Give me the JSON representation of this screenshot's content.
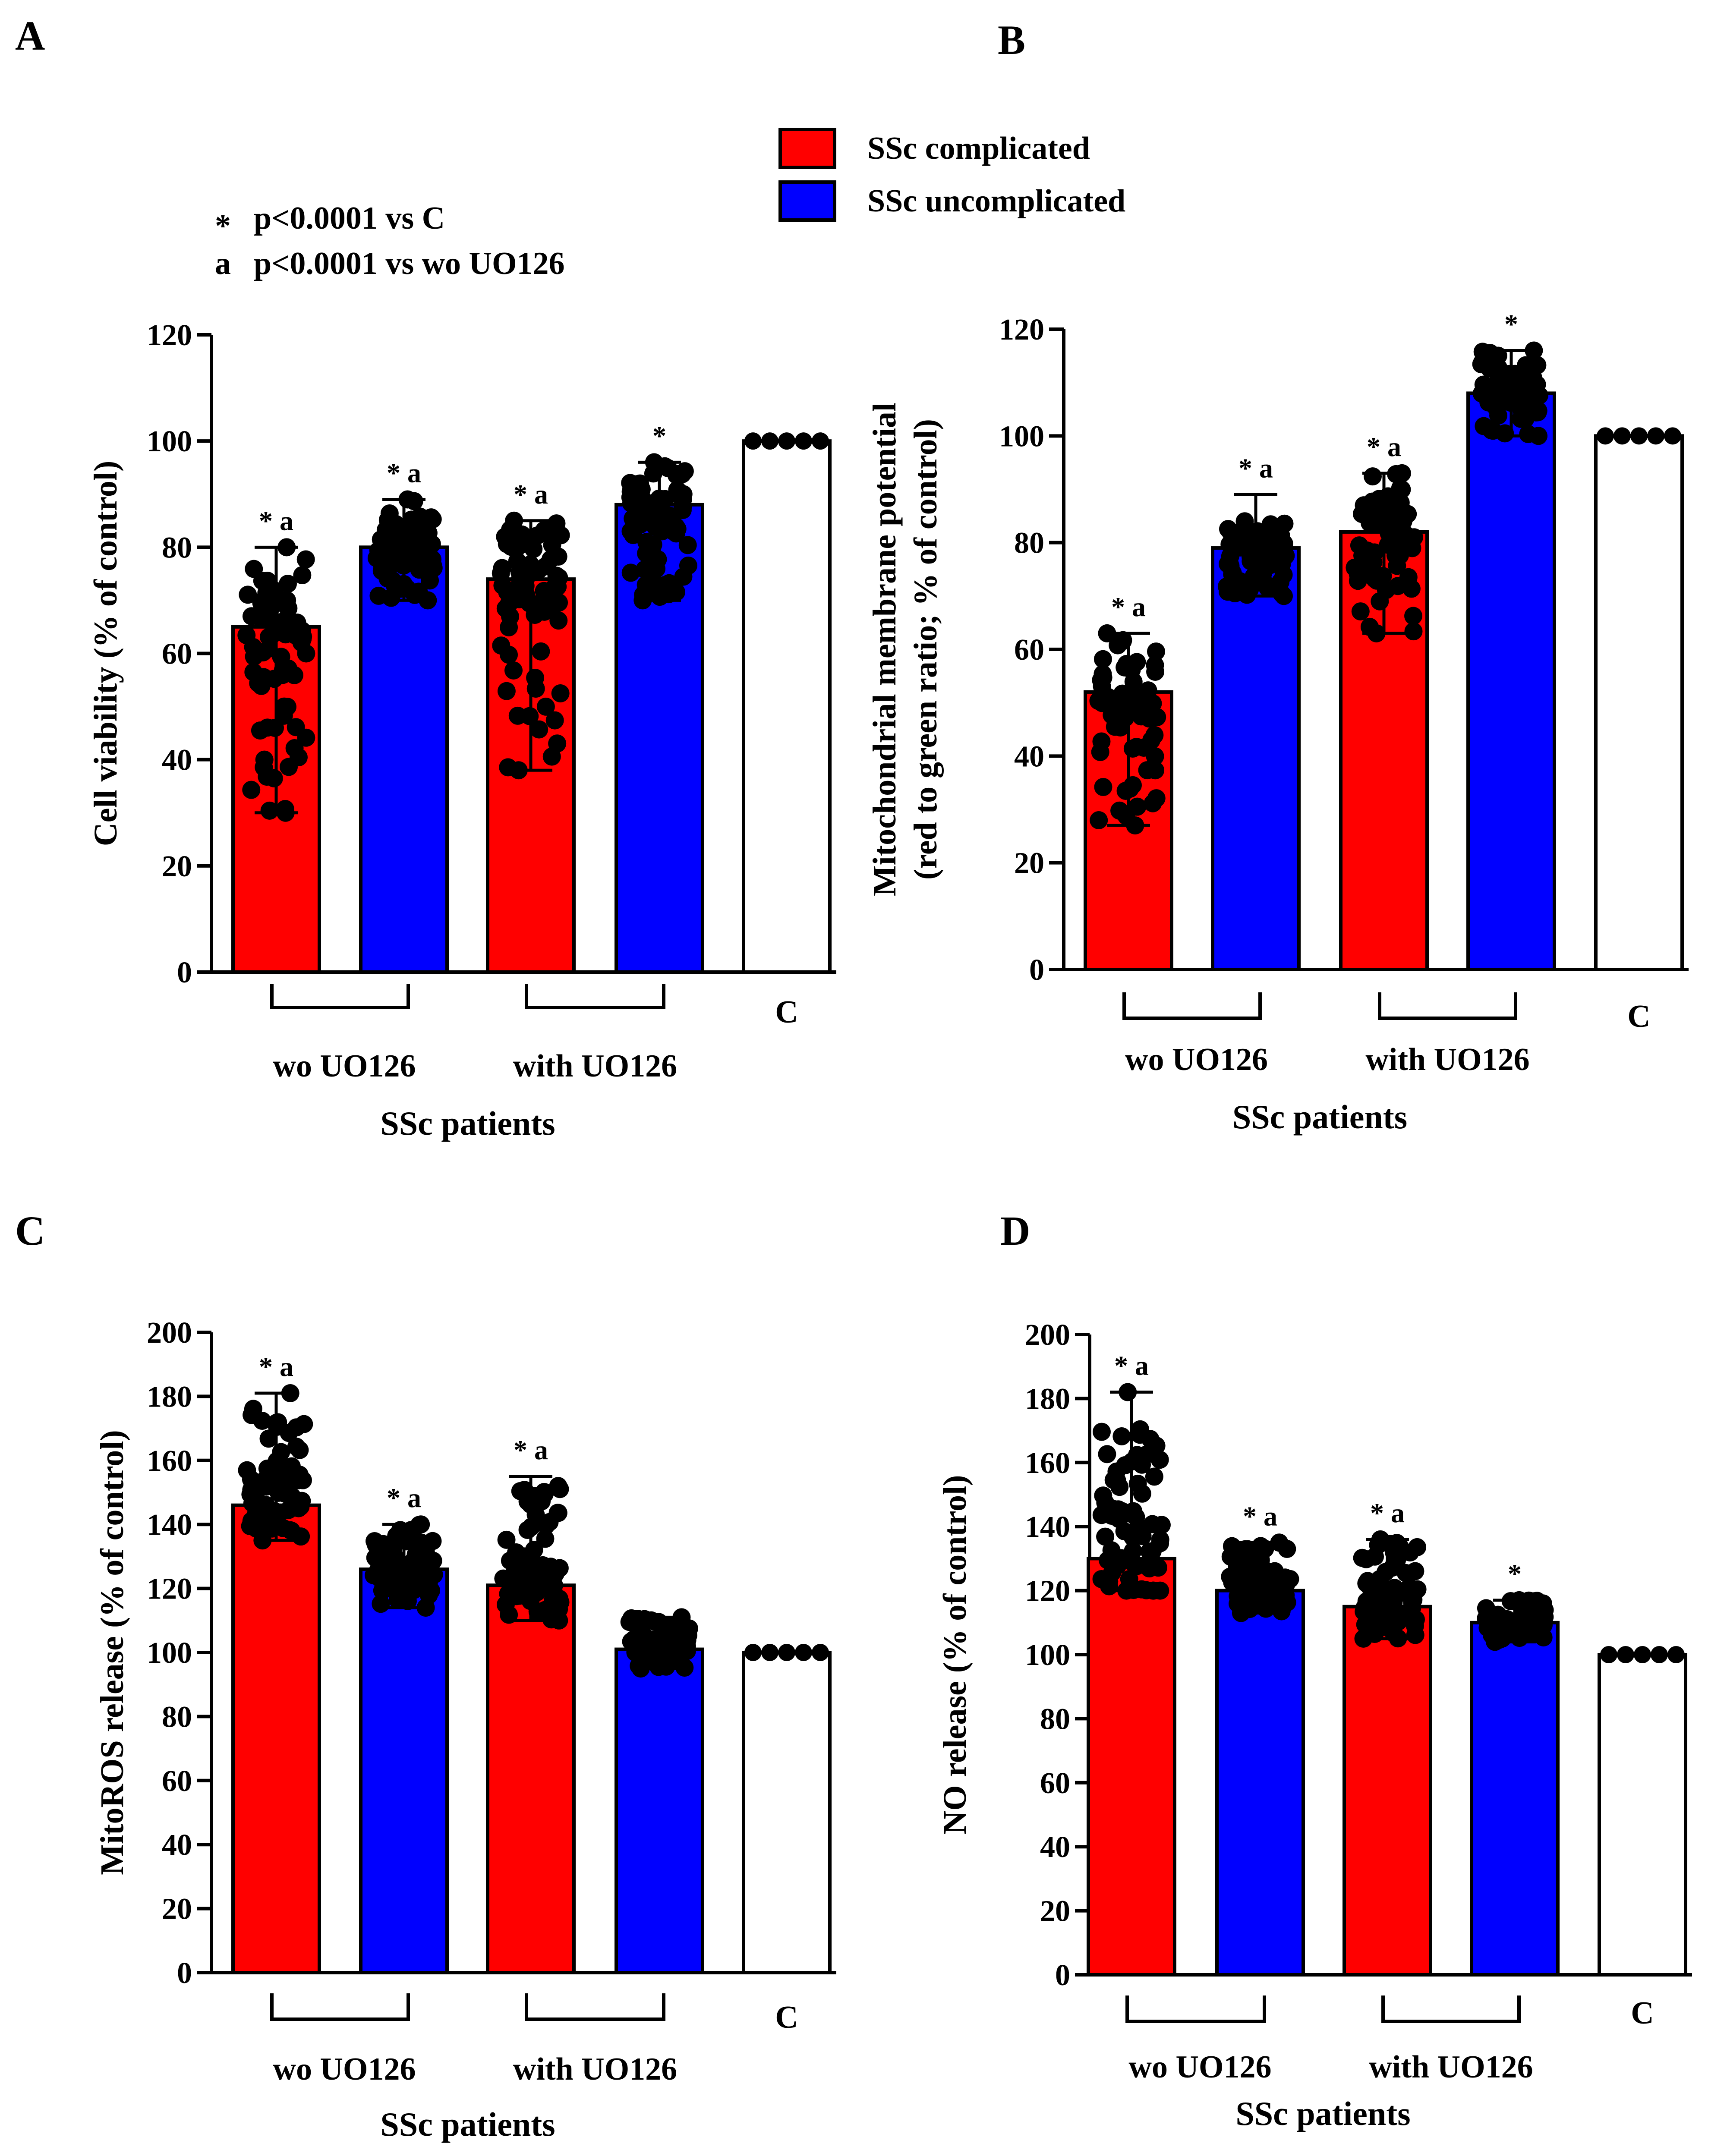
{
  "legend": {
    "items": [
      {
        "label": "SSc complicated",
        "color": "#ff0000"
      },
      {
        "label": "SSc uncomplicated",
        "color": "#0000ff"
      }
    ]
  },
  "notes": [
    {
      "symbol": "*",
      "text": "p<0.0001 vs C"
    },
    {
      "symbol": "a",
      "text": "p<0.0001 vs wo UO126"
    }
  ],
  "chart_data": [
    {
      "panel": "A",
      "type": "bar",
      "ylabel_lines": [
        "Cell viability (% of control)"
      ],
      "ylim": [
        0,
        120
      ],
      "yticks": [
        0,
        20,
        40,
        60,
        80,
        100,
        120
      ],
      "xlabel": "SSc patients",
      "groups": [
        "wo UO126",
        "with UO126"
      ],
      "control_label": "C",
      "bars": [
        {
          "series": "SSc complicated",
          "value": 65,
          "err_low": 30,
          "err_high": 80,
          "scatter": [
            30,
            80
          ],
          "sig": "* a"
        },
        {
          "series": "SSc uncomplicated",
          "value": 80,
          "err_low": 70,
          "err_high": 89,
          "scatter": [
            70,
            89
          ],
          "sig": "* a"
        },
        {
          "series": "SSc complicated",
          "value": 74,
          "err_low": 38,
          "err_high": 85,
          "scatter": [
            38,
            85
          ],
          "sig": "* a"
        },
        {
          "series": "SSc uncomplicated",
          "value": 88,
          "err_low": 70,
          "err_high": 96,
          "scatter": [
            70,
            96
          ],
          "sig": "*"
        },
        {
          "series": "C",
          "value": 100,
          "err_low": 100,
          "err_high": 100,
          "scatter": [],
          "sig": ""
        }
      ]
    },
    {
      "panel": "B",
      "type": "bar",
      "ylabel_lines": [
        "Mitochondrial membrane potential",
        "(red to green ratio; % of control)"
      ],
      "ylim": [
        0,
        120
      ],
      "yticks": [
        0,
        20,
        40,
        60,
        80,
        100,
        120
      ],
      "xlabel": "SSc patients",
      "groups": [
        "wo UO126",
        "with UO126"
      ],
      "control_label": "C",
      "bars": [
        {
          "series": "SSc complicated",
          "value": 52,
          "err_low": 27,
          "err_high": 63,
          "scatter": [
            27,
            63
          ],
          "sig": "* a"
        },
        {
          "series": "SSc uncomplicated",
          "value": 79,
          "err_low": 70,
          "err_high": 89,
          "scatter": [
            70,
            84
          ],
          "sig": "* a"
        },
        {
          "series": "SSc complicated",
          "value": 82,
          "err_low": 63,
          "err_high": 93,
          "scatter": [
            63,
            93
          ],
          "sig": "* a"
        },
        {
          "series": "SSc uncomplicated",
          "value": 108,
          "err_low": 100,
          "err_high": 116,
          "scatter": [
            100,
            116
          ],
          "sig": "*"
        },
        {
          "series": "C",
          "value": 100,
          "err_low": 100,
          "err_high": 100,
          "scatter": [],
          "sig": ""
        }
      ]
    },
    {
      "panel": "C",
      "type": "bar",
      "ylabel_lines": [
        "MitoROS release (% of control)"
      ],
      "ylim": [
        0,
        200
      ],
      "yticks": [
        0,
        20,
        40,
        60,
        80,
        100,
        120,
        140,
        160,
        180,
        200
      ],
      "xlabel": "SSc patients",
      "groups": [
        "wo UO126",
        "with UO126"
      ],
      "control_label": "C",
      "bars": [
        {
          "series": "SSc complicated",
          "value": 146,
          "err_low": 135,
          "err_high": 181,
          "scatter": [
            135,
            181
          ],
          "sig": "* a"
        },
        {
          "series": "SSc uncomplicated",
          "value": 126,
          "err_low": 114,
          "err_high": 140,
          "scatter": [
            114,
            140
          ],
          "sig": "* a"
        },
        {
          "series": "SSc complicated",
          "value": 121,
          "err_low": 110,
          "err_high": 155,
          "scatter": [
            110,
            152
          ],
          "sig": "* a"
        },
        {
          "series": "SSc uncomplicated",
          "value": 101,
          "err_low": 95,
          "err_high": 111,
          "scatter": [
            95,
            111
          ],
          "sig": ""
        },
        {
          "series": "C",
          "value": 100,
          "err_low": 100,
          "err_high": 100,
          "scatter": [],
          "sig": ""
        }
      ]
    },
    {
      "panel": "D",
      "type": "bar",
      "ylabel_lines": [
        "NO release (% of control)"
      ],
      "ylim": [
        0,
        200
      ],
      "yticks": [
        0,
        20,
        40,
        60,
        80,
        100,
        120,
        140,
        160,
        180,
        200
      ],
      "xlabel": "SSc patients",
      "groups": [
        "wo UO126",
        "with UO126"
      ],
      "control_label": "C",
      "bars": [
        {
          "series": "SSc complicated",
          "value": 130,
          "err_low": 120,
          "err_high": 182,
          "scatter": [
            120,
            182
          ],
          "sig": "* a"
        },
        {
          "series": "SSc uncomplicated",
          "value": 120,
          "err_low": 113,
          "err_high": 135,
          "scatter": [
            113,
            135
          ],
          "sig": "* a"
        },
        {
          "series": "SSc complicated",
          "value": 115,
          "err_low": 105,
          "err_high": 136,
          "scatter": [
            105,
            136
          ],
          "sig": "* a"
        },
        {
          "series": "SSc uncomplicated",
          "value": 110,
          "err_low": 104,
          "err_high": 117,
          "scatter": [
            104,
            117
          ],
          "sig": "*"
        },
        {
          "series": "C",
          "value": 100,
          "err_low": 100,
          "err_high": 100,
          "scatter": [],
          "sig": ""
        }
      ]
    }
  ]
}
